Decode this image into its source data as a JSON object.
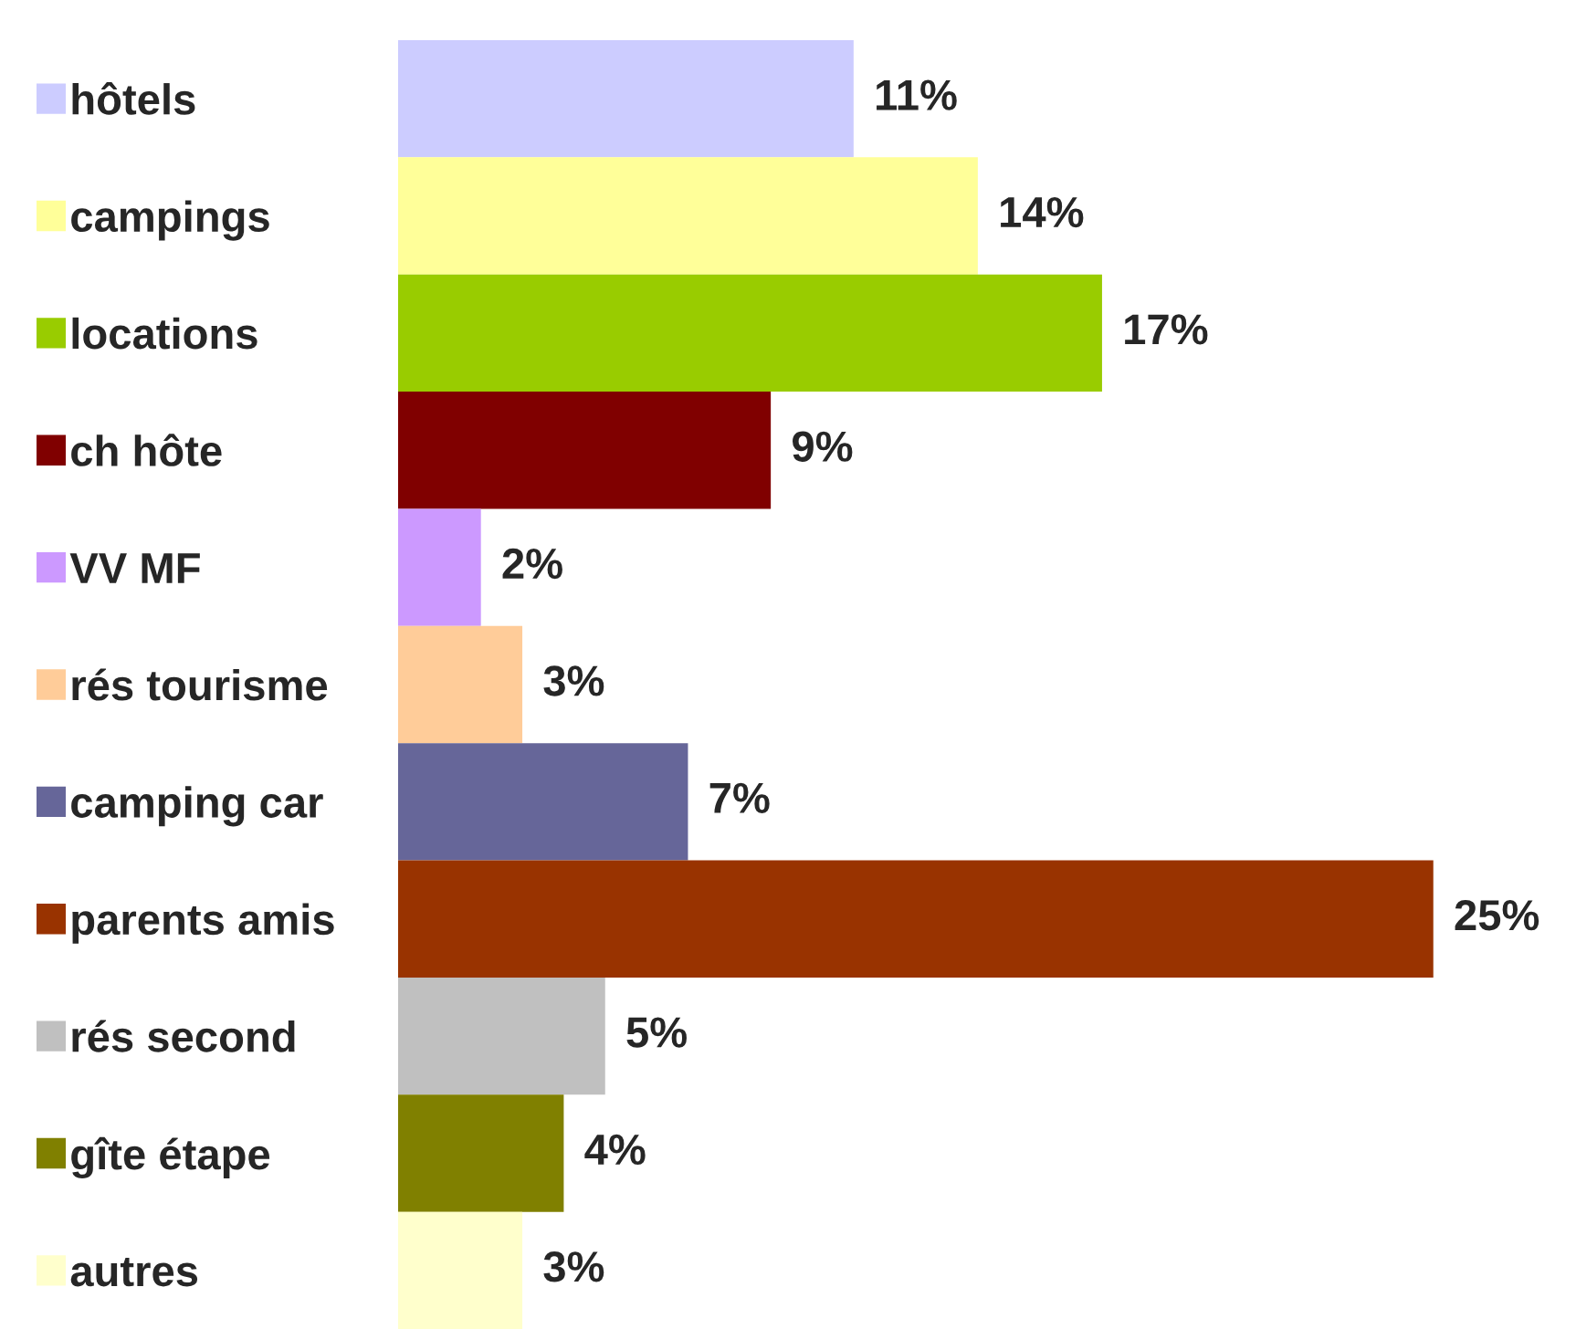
{
  "chart_data": {
    "type": "bar",
    "orientation": "horizontal",
    "categories": [
      "hôtels",
      "campings",
      "locations",
      "ch hôte",
      "VV MF",
      "rés tourisme",
      "camping car",
      "parents amis",
      "rés second",
      "gîte étape",
      "autres"
    ],
    "values": [
      11,
      14,
      17,
      9,
      2,
      3,
      7,
      25,
      5,
      4,
      3
    ],
    "colors": [
      "#ccccff",
      "#ffff99",
      "#99cc00",
      "#800000",
      "#cc99ff",
      "#ffcc99",
      "#666699",
      "#993300",
      "#c0c0c0",
      "#808000",
      "#ffffcc"
    ],
    "value_labels": [
      "11%",
      "14%",
      "17%",
      "9%",
      "2%",
      "3%",
      "7%",
      "25%",
      "5%",
      "4%",
      "3%"
    ],
    "tick_labels": "y",
    "grid": false
  }
}
